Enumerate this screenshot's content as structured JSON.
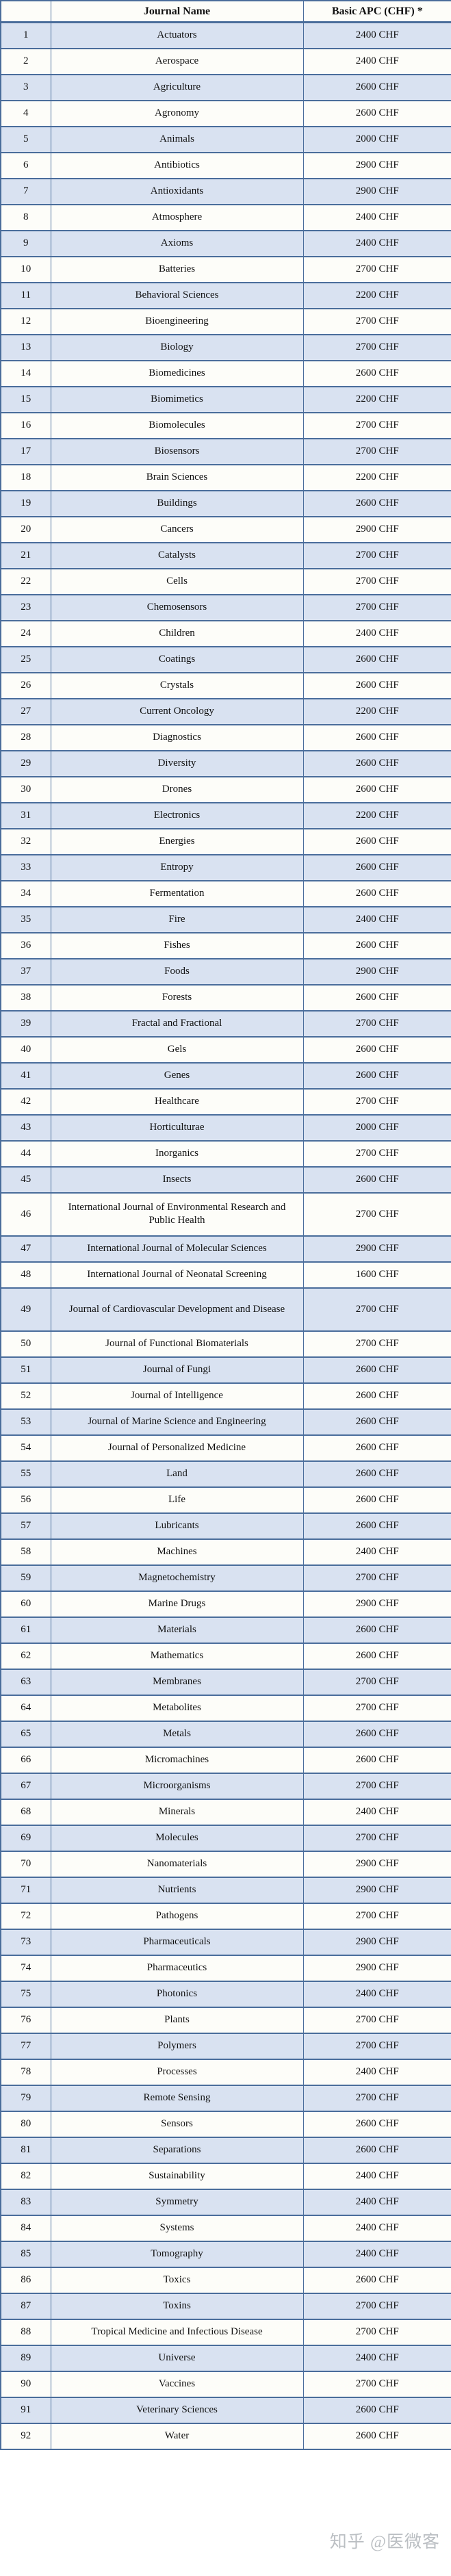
{
  "table": {
    "headers": [
      "",
      "Journal Name",
      "Basic APC (CHF) *"
    ],
    "rows": [
      {
        "num": "1",
        "name": "Actuators",
        "apc": "2400 CHF"
      },
      {
        "num": "2",
        "name": "Aerospace",
        "apc": "2400 CHF"
      },
      {
        "num": "3",
        "name": "Agriculture",
        "apc": "2600 CHF"
      },
      {
        "num": "4",
        "name": "Agronomy",
        "apc": "2600 CHF"
      },
      {
        "num": "5",
        "name": "Animals",
        "apc": "2000 CHF"
      },
      {
        "num": "6",
        "name": "Antibiotics",
        "apc": "2900 CHF"
      },
      {
        "num": "7",
        "name": "Antioxidants",
        "apc": "2900 CHF"
      },
      {
        "num": "8",
        "name": "Atmosphere",
        "apc": "2400 CHF"
      },
      {
        "num": "9",
        "name": "Axioms",
        "apc": "2400 CHF"
      },
      {
        "num": "10",
        "name": "Batteries",
        "apc": "2700 CHF"
      },
      {
        "num": "11",
        "name": "Behavioral Sciences",
        "apc": "2200 CHF"
      },
      {
        "num": "12",
        "name": "Bioengineering",
        "apc": "2700 CHF"
      },
      {
        "num": "13",
        "name": "Biology",
        "apc": "2700 CHF"
      },
      {
        "num": "14",
        "name": "Biomedicines",
        "apc": "2600 CHF"
      },
      {
        "num": "15",
        "name": "Biomimetics",
        "apc": "2200 CHF"
      },
      {
        "num": "16",
        "name": "Biomolecules",
        "apc": "2700 CHF"
      },
      {
        "num": "17",
        "name": "Biosensors",
        "apc": "2700 CHF"
      },
      {
        "num": "18",
        "name": "Brain Sciences",
        "apc": "2200 CHF"
      },
      {
        "num": "19",
        "name": "Buildings",
        "apc": "2600 CHF"
      },
      {
        "num": "20",
        "name": "Cancers",
        "apc": "2900 CHF"
      },
      {
        "num": "21",
        "name": "Catalysts",
        "apc": "2700 CHF"
      },
      {
        "num": "22",
        "name": "Cells",
        "apc": "2700 CHF"
      },
      {
        "num": "23",
        "name": "Chemosensors",
        "apc": "2700 CHF"
      },
      {
        "num": "24",
        "name": "Children",
        "apc": "2400 CHF"
      },
      {
        "num": "25",
        "name": "Coatings",
        "apc": "2600 CHF"
      },
      {
        "num": "26",
        "name": "Crystals",
        "apc": "2600 CHF"
      },
      {
        "num": "27",
        "name": "Current Oncology",
        "apc": "2200 CHF"
      },
      {
        "num": "28",
        "name": "Diagnostics",
        "apc": "2600 CHF"
      },
      {
        "num": "29",
        "name": "Diversity",
        "apc": "2600 CHF"
      },
      {
        "num": "30",
        "name": "Drones",
        "apc": "2600 CHF"
      },
      {
        "num": "31",
        "name": "Electronics",
        "apc": "2200 CHF"
      },
      {
        "num": "32",
        "name": "Energies",
        "apc": "2600 CHF"
      },
      {
        "num": "33",
        "name": "Entropy",
        "apc": "2600 CHF"
      },
      {
        "num": "34",
        "name": "Fermentation",
        "apc": "2600 CHF"
      },
      {
        "num": "35",
        "name": "Fire",
        "apc": "2400 CHF"
      },
      {
        "num": "36",
        "name": "Fishes",
        "apc": "2600 CHF"
      },
      {
        "num": "37",
        "name": "Foods",
        "apc": "2900 CHF"
      },
      {
        "num": "38",
        "name": "Forests",
        "apc": "2600 CHF"
      },
      {
        "num": "39",
        "name": "Fractal and Fractional",
        "apc": "2700 CHF"
      },
      {
        "num": "40",
        "name": "Gels",
        "apc": "2600 CHF"
      },
      {
        "num": "41",
        "name": "Genes",
        "apc": "2600 CHF"
      },
      {
        "num": "42",
        "name": "Healthcare",
        "apc": "2700 CHF"
      },
      {
        "num": "43",
        "name": "Horticulturae",
        "apc": "2000 CHF"
      },
      {
        "num": "44",
        "name": "Inorganics",
        "apc": "2700 CHF"
      },
      {
        "num": "45",
        "name": "Insects",
        "apc": "2600 CHF"
      },
      {
        "num": "46",
        "name": "International Journal of Environmental Research and Public Health",
        "apc": "2700 CHF"
      },
      {
        "num": "47",
        "name": "International Journal of Molecular Sciences",
        "apc": "2900 CHF"
      },
      {
        "num": "48",
        "name": "International Journal of Neonatal Screening",
        "apc": "1600 CHF"
      },
      {
        "num": "49",
        "name": "Journal of Cardiovascular Development and Disease",
        "apc": "2700 CHF"
      },
      {
        "num": "50",
        "name": "Journal of Functional Biomaterials",
        "apc": "2700 CHF"
      },
      {
        "num": "51",
        "name": "Journal of Fungi",
        "apc": "2600 CHF"
      },
      {
        "num": "52",
        "name": "Journal of Intelligence",
        "apc": "2600 CHF"
      },
      {
        "num": "53",
        "name": "Journal of Marine Science and Engineering",
        "apc": "2600 CHF"
      },
      {
        "num": "54",
        "name": "Journal of Personalized Medicine",
        "apc": "2600 CHF"
      },
      {
        "num": "55",
        "name": "Land",
        "apc": "2600 CHF"
      },
      {
        "num": "56",
        "name": "Life",
        "apc": "2600 CHF"
      },
      {
        "num": "57",
        "name": "Lubricants",
        "apc": "2600 CHF"
      },
      {
        "num": "58",
        "name": "Machines",
        "apc": "2400 CHF"
      },
      {
        "num": "59",
        "name": "Magnetochemistry",
        "apc": "2700 CHF"
      },
      {
        "num": "60",
        "name": "Marine Drugs",
        "apc": "2900 CHF"
      },
      {
        "num": "61",
        "name": "Materials",
        "apc": "2600 CHF"
      },
      {
        "num": "62",
        "name": "Mathematics",
        "apc": "2600 CHF"
      },
      {
        "num": "63",
        "name": "Membranes",
        "apc": "2700 CHF"
      },
      {
        "num": "64",
        "name": "Metabolites",
        "apc": "2700 CHF"
      },
      {
        "num": "65",
        "name": "Metals",
        "apc": "2600 CHF"
      },
      {
        "num": "66",
        "name": "Micromachines",
        "apc": "2600 CHF"
      },
      {
        "num": "67",
        "name": "Microorganisms",
        "apc": "2700 CHF"
      },
      {
        "num": "68",
        "name": "Minerals",
        "apc": "2400 CHF"
      },
      {
        "num": "69",
        "name": "Molecules",
        "apc": "2700 CHF"
      },
      {
        "num": "70",
        "name": "Nanomaterials",
        "apc": "2900 CHF"
      },
      {
        "num": "71",
        "name": "Nutrients",
        "apc": "2900 CHF"
      },
      {
        "num": "72",
        "name": "Pathogens",
        "apc": "2700 CHF"
      },
      {
        "num": "73",
        "name": "Pharmaceuticals",
        "apc": "2900 CHF"
      },
      {
        "num": "74",
        "name": "Pharmaceutics",
        "apc": "2900 CHF"
      },
      {
        "num": "75",
        "name": "Photonics",
        "apc": "2400 CHF"
      },
      {
        "num": "76",
        "name": "Plants",
        "apc": "2700 CHF"
      },
      {
        "num": "77",
        "name": "Polymers",
        "apc": "2700 CHF"
      },
      {
        "num": "78",
        "name": "Processes",
        "apc": "2400 CHF"
      },
      {
        "num": "79",
        "name": "Remote Sensing",
        "apc": "2700 CHF"
      },
      {
        "num": "80",
        "name": "Sensors",
        "apc": "2600 CHF"
      },
      {
        "num": "81",
        "name": "Separations",
        "apc": "2600 CHF"
      },
      {
        "num": "82",
        "name": "Sustainability",
        "apc": "2400 CHF"
      },
      {
        "num": "83",
        "name": "Symmetry",
        "apc": "2400 CHF"
      },
      {
        "num": "84",
        "name": "Systems",
        "apc": "2400 CHF"
      },
      {
        "num": "85",
        "name": "Tomography",
        "apc": "2400 CHF"
      },
      {
        "num": "86",
        "name": "Toxics",
        "apc": "2600 CHF"
      },
      {
        "num": "87",
        "name": "Toxins",
        "apc": "2700 CHF"
      },
      {
        "num": "88",
        "name": "Tropical Medicine and Infectious Disease",
        "apc": "2700 CHF"
      },
      {
        "num": "89",
        "name": "Universe",
        "apc": "2400 CHF"
      },
      {
        "num": "90",
        "name": "Vaccines",
        "apc": "2700 CHF"
      },
      {
        "num": "91",
        "name": "Veterinary Sciences",
        "apc": "2600 CHF"
      },
      {
        "num": "92",
        "name": "Water",
        "apc": "2600 CHF"
      }
    ]
  },
  "watermark": "知乎 @医微客",
  "colors": {
    "row_blue": "#d9e2f1",
    "row_white": "#fdfdf9",
    "border": "#4a6d9b"
  }
}
